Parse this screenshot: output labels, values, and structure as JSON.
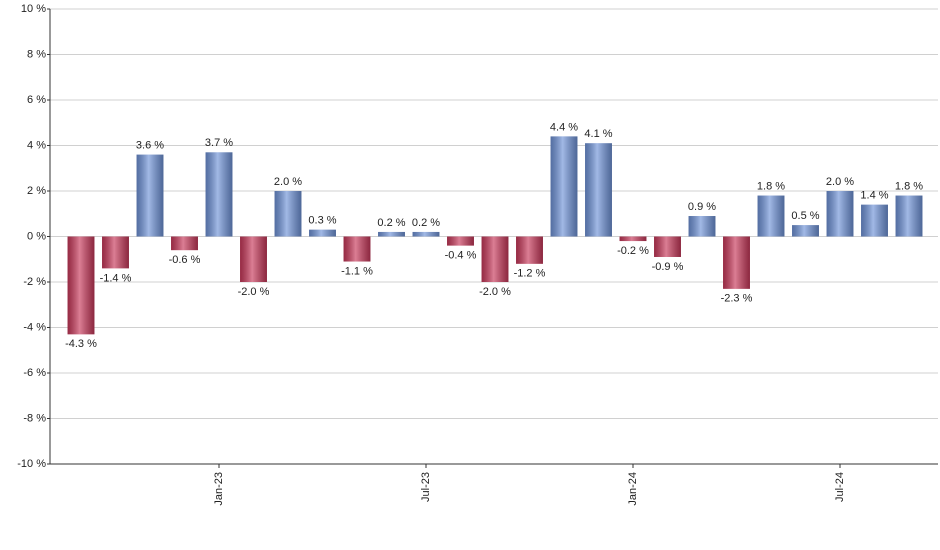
{
  "chart_data": {
    "type": "bar",
    "categories": [
      null,
      null,
      null,
      null,
      "Jan-23",
      null,
      null,
      null,
      null,
      null,
      "Jul-23",
      null,
      null,
      null,
      null,
      null,
      "Jan-24",
      null,
      null,
      null,
      null,
      null,
      "Jul-24",
      null,
      null
    ],
    "values": [
      -4.3,
      -1.4,
      3.6,
      -0.6,
      3.7,
      -2.0,
      2.0,
      0.3,
      -1.1,
      0.2,
      0.2,
      -0.4,
      -2.0,
      -1.2,
      4.4,
      4.1,
      -0.2,
      -0.9,
      0.9,
      -2.3,
      1.8,
      0.5,
      2.0,
      1.4,
      1.8
    ],
    "value_labels": [
      "-4.3 %",
      "-1.4 %",
      "3.6 %",
      "-0.6 %",
      "3.7 %",
      "-2.0 %",
      "2.0 %",
      "0.3 %",
      "-1.1 %",
      "0.2 %",
      "0.2 %",
      "-0.4 %",
      "-2.0 %",
      "-1.2 %",
      "4.4 %",
      "4.1 %",
      "-0.2 %",
      "-0.9 %",
      "0.9 %",
      "-2.3 %",
      "1.8 %",
      "0.5 %",
      "2.0 %",
      "1.4 %",
      "1.8 %"
    ],
    "positive_color": "#6f93d8",
    "negative_color": "#c8385a",
    "ylim": [
      -10,
      10
    ],
    "yticks": [
      {
        "value": -10,
        "label": "-10 %"
      },
      {
        "value": -8,
        "label": "-8 %"
      },
      {
        "value": -6,
        "label": "-6 %"
      },
      {
        "value": -4,
        "label": "-4 %"
      },
      {
        "value": -2,
        "label": "-2 %"
      },
      {
        "value": 0,
        "label": "0 %"
      },
      {
        "value": 2,
        "label": "2 %"
      },
      {
        "value": 4,
        "label": "4 %"
      },
      {
        "value": 6,
        "label": "6 %"
      },
      {
        "value": 8,
        "label": "8 %"
      },
      {
        "value": 10,
        "label": "10 %"
      }
    ],
    "grid": true
  }
}
